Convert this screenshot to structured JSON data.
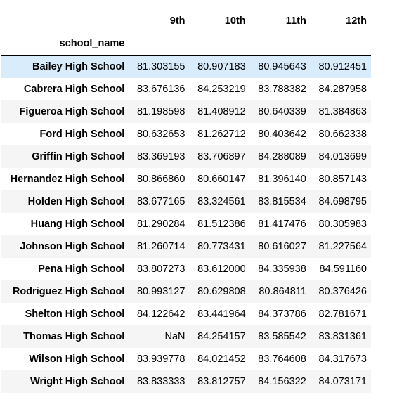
{
  "table": {
    "index_name": "school_name",
    "columns": [
      "9th",
      "10th",
      "11th",
      "12th"
    ],
    "rows": [
      {
        "school": "Bailey High School",
        "values": [
          "81.303155",
          "80.907183",
          "80.945643",
          "80.912451"
        ]
      },
      {
        "school": "Cabrera High School",
        "values": [
          "83.676136",
          "84.253219",
          "83.788382",
          "84.287958"
        ]
      },
      {
        "school": "Figueroa High School",
        "values": [
          "81.198598",
          "81.408912",
          "80.640339",
          "81.384863"
        ]
      },
      {
        "school": "Ford High School",
        "values": [
          "80.632653",
          "81.262712",
          "80.403642",
          "80.662338"
        ]
      },
      {
        "school": "Griffin High School",
        "values": [
          "83.369193",
          "83.706897",
          "84.288089",
          "84.013699"
        ]
      },
      {
        "school": "Hernandez High School",
        "values": [
          "80.866860",
          "80.660147",
          "81.396140",
          "80.857143"
        ]
      },
      {
        "school": "Holden High School",
        "values": [
          "83.677165",
          "83.324561",
          "83.815534",
          "84.698795"
        ]
      },
      {
        "school": "Huang High School",
        "values": [
          "81.290284",
          "81.512386",
          "81.417476",
          "80.305983"
        ]
      },
      {
        "school": "Johnson High School",
        "values": [
          "81.260714",
          "80.773431",
          "80.616027",
          "81.227564"
        ]
      },
      {
        "school": "Pena High School",
        "values": [
          "83.807273",
          "83.612000",
          "84.335938",
          "84.591160"
        ]
      },
      {
        "school": "Rodriguez High School",
        "values": [
          "80.993127",
          "80.629808",
          "80.864811",
          "80.376426"
        ]
      },
      {
        "school": "Shelton High School",
        "values": [
          "84.122642",
          "83.441964",
          "84.373786",
          "82.781671"
        ]
      },
      {
        "school": "Thomas High School",
        "values": [
          "NaN",
          "84.254157",
          "83.585542",
          "83.831361"
        ]
      },
      {
        "school": "Wilson High School",
        "values": [
          "83.939778",
          "84.021452",
          "83.764608",
          "84.317673"
        ]
      },
      {
        "school": "Wright High School",
        "values": [
          "83.833333",
          "83.812757",
          "84.156322",
          "84.073171"
        ]
      }
    ],
    "hovered_row_index": 0,
    "colors": {
      "hover_row": "#d9ecfb",
      "striped_row": "#f5f5f5",
      "header_rule": "#000000"
    }
  }
}
